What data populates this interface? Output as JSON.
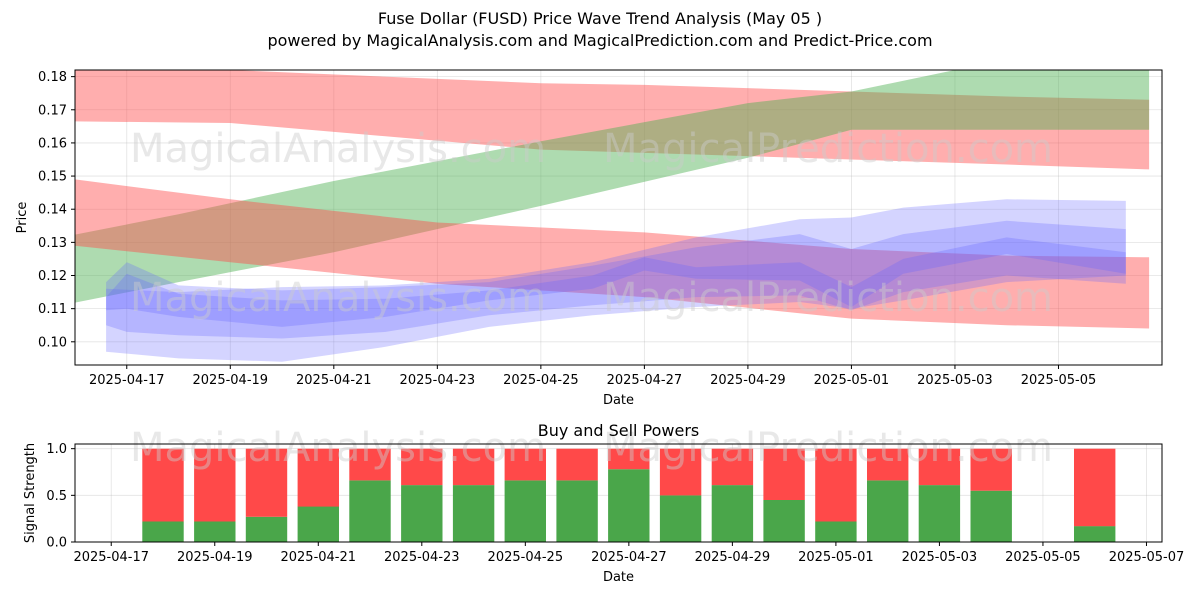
{
  "title_line1": "Fuse Dollar (FUSD) Price Wave Trend Analysis (May 05 )",
  "title_line2": "powered by MagicalAnalysis.com and MagicalPrediction.com and Predict-Price.com",
  "watermarks": [
    "MagicalAnalysis.com",
    "MagicalPrediction.com"
  ],
  "colors": {
    "green_band": "#4caf50",
    "red_band": "#ff4c4c",
    "blue_band": "#6666ff",
    "buy": "#4aa64a",
    "sell": "#ff4949"
  },
  "chart_data": [
    {
      "type": "area",
      "title": "",
      "xlabel": "Date",
      "ylabel": "Price",
      "x_range": [
        "2025-04-16",
        "2025-05-07"
      ],
      "ylim": [
        0.093,
        0.182
      ],
      "grid": true,
      "x_ticks": [
        "2025-04-17",
        "2025-04-19",
        "2025-04-21",
        "2025-04-23",
        "2025-04-25",
        "2025-04-27",
        "2025-04-29",
        "2025-05-01",
        "2025-05-03",
        "2025-05-05"
      ],
      "y_ticks": [
        "0.10",
        "0.11",
        "0.12",
        "0.13",
        "0.14",
        "0.15",
        "0.16",
        "0.17",
        "0.18"
      ],
      "bands": [
        {
          "name": "red-top",
          "color": "red",
          "x": [
            "2025-04-16",
            "2025-04-19",
            "2025-04-25",
            "2025-04-27",
            "2025-05-01",
            "2025-05-04",
            "2025-05-06.75"
          ],
          "upper": [
            0.182,
            0.182,
            0.178,
            0.1775,
            0.1755,
            0.174,
            0.173
          ],
          "lower": [
            0.1665,
            0.166,
            0.158,
            0.157,
            0.155,
            0.1535,
            0.152
          ]
        },
        {
          "name": "green-up",
          "color": "green",
          "x": [
            "2025-04-15.9",
            "2025-04-18",
            "2025-04-21",
            "2025-04-25",
            "2025-04-29",
            "2025-05-01",
            "2025-05-03",
            "2025-05-06.75"
          ],
          "upper": [
            0.132,
            0.1385,
            0.1485,
            0.1605,
            0.172,
            0.1755,
            0.182,
            0.182
          ],
          "lower": [
            0.1115,
            0.118,
            0.127,
            0.141,
            0.1555,
            0.164,
            0.164,
            0.164
          ]
        },
        {
          "name": "red-mid",
          "color": "red",
          "x": [
            "2025-04-16",
            "2025-04-19",
            "2025-04-23",
            "2025-04-27",
            "2025-05-01",
            "2025-05-04",
            "2025-05-06.75"
          ],
          "upper": [
            0.149,
            0.143,
            0.136,
            0.133,
            0.128,
            0.126,
            0.1255
          ],
          "lower": [
            0.129,
            0.124,
            0.1175,
            0.1135,
            0.107,
            0.105,
            0.104
          ]
        },
        {
          "name": "blue-outer",
          "color": "blue",
          "x": [
            "2025-04-16.6",
            "2025-04-18",
            "2025-04-20",
            "2025-04-22",
            "2025-04-24",
            "2025-04-26",
            "2025-04-28",
            "2025-04-30",
            "2025-05-01",
            "2025-05-02",
            "2025-05-04",
            "2025-05-06.3"
          ],
          "upper": [
            0.116,
            0.115,
            0.1165,
            0.117,
            0.119,
            0.124,
            0.1315,
            0.137,
            0.1375,
            0.1405,
            0.143,
            0.1425
          ],
          "lower": [
            0.097,
            0.095,
            0.094,
            0.0985,
            0.1045,
            0.108,
            0.1105,
            0.112,
            0.11,
            0.1125,
            0.118,
            0.12
          ]
        },
        {
          "name": "blue-mid",
          "color": "blue",
          "x": [
            "2025-04-16.6",
            "2025-04-17",
            "2025-04-18",
            "2025-04-20",
            "2025-04-22",
            "2025-04-24",
            "2025-04-26",
            "2025-04-28",
            "2025-04-30",
            "2025-05-01",
            "2025-05-02",
            "2025-05-04",
            "2025-05-06.3"
          ],
          "upper": [
            0.118,
            0.124,
            0.117,
            0.1155,
            0.1165,
            0.118,
            0.123,
            0.1285,
            0.1325,
            0.128,
            0.1325,
            0.1365,
            0.134
          ],
          "lower": [
            0.105,
            0.103,
            0.102,
            0.101,
            0.103,
            0.108,
            0.111,
            0.1135,
            0.114,
            0.1095,
            0.115,
            0.12,
            0.1175
          ]
        },
        {
          "name": "blue-core",
          "color": "blue",
          "x": [
            "2025-04-16.6",
            "2025-04-17",
            "2025-04-18",
            "2025-04-20",
            "2025-04-22",
            "2025-04-24",
            "2025-04-26",
            "2025-04-27",
            "2025-04-28",
            "2025-04-30",
            "2025-05-01",
            "2025-05-02",
            "2025-05-04",
            "2025-05-06.3"
          ],
          "upper": [
            0.1135,
            0.1205,
            0.1145,
            0.1125,
            0.113,
            0.1155,
            0.12,
            0.1255,
            0.1225,
            0.124,
            0.1165,
            0.125,
            0.1315,
            0.127
          ],
          "lower": [
            0.1095,
            0.11,
            0.1075,
            0.1045,
            0.1075,
            0.1125,
            0.116,
            0.1215,
            0.119,
            0.1185,
            0.1105,
            0.1205,
            0.1265,
            0.1205
          ]
        }
      ]
    },
    {
      "type": "bar",
      "title": "Buy and Sell Powers",
      "xlabel": "Date",
      "ylabel": "Signal Strength",
      "x_range": [
        "2025-04-16.3",
        "2025-05-07.3"
      ],
      "ylim": [
        0,
        1.05
      ],
      "grid": true,
      "x_ticks": [
        "2025-04-17",
        "2025-04-19",
        "2025-04-21",
        "2025-04-23",
        "2025-04-25",
        "2025-04-27",
        "2025-04-29",
        "2025-05-01",
        "2025-05-03",
        "2025-05-05",
        "2025-05-07"
      ],
      "y_ticks": [
        "0.0",
        "0.5",
        "1.0"
      ],
      "categories": [
        "2025-04-18",
        "2025-04-19",
        "2025-04-20",
        "2025-04-21",
        "2025-04-22",
        "2025-04-23",
        "2025-04-24",
        "2025-04-25",
        "2025-04-26",
        "2025-04-27",
        "2025-04-28",
        "2025-04-29",
        "2025-04-30",
        "2025-05-01",
        "2025-05-02",
        "2025-05-03",
        "2025-05-04",
        "2025-05-06"
      ],
      "series": [
        {
          "name": "Buy",
          "values": [
            0.22,
            0.22,
            0.27,
            0.38,
            0.66,
            0.61,
            0.61,
            0.66,
            0.66,
            0.78,
            0.5,
            0.61,
            0.45,
            0.22,
            0.66,
            0.61,
            0.55,
            0.17
          ]
        },
        {
          "name": "Sell",
          "values": [
            0.78,
            0.78,
            0.73,
            0.62,
            0.34,
            0.39,
            0.39,
            0.34,
            0.34,
            0.22,
            0.5,
            0.39,
            0.55,
            0.78,
            0.34,
            0.39,
            0.45,
            0.83
          ]
        }
      ]
    }
  ]
}
